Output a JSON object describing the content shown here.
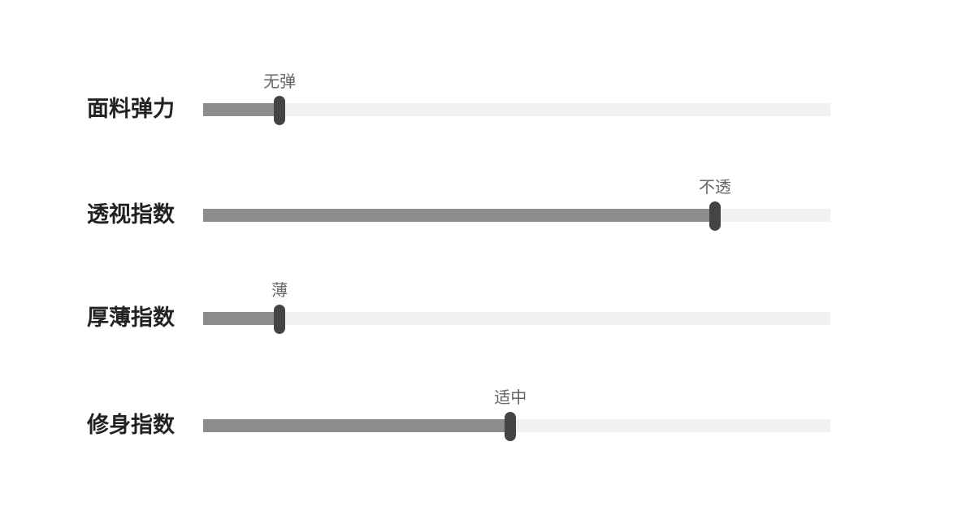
{
  "sliders": [
    {
      "label": "面料弹力",
      "value_label": "无弹",
      "level": 0.122
    },
    {
      "label": "透视指数",
      "value_label": "不透",
      "level": 0.816
    },
    {
      "label": "厚薄指数",
      "value_label": "薄",
      "level": 0.122
    },
    {
      "label": "修身指数",
      "value_label": "适中",
      "level": 0.49
    }
  ],
  "colors": {
    "fill": "#8c8c8c",
    "track": "#f1f1f1",
    "handle": "#444444"
  }
}
